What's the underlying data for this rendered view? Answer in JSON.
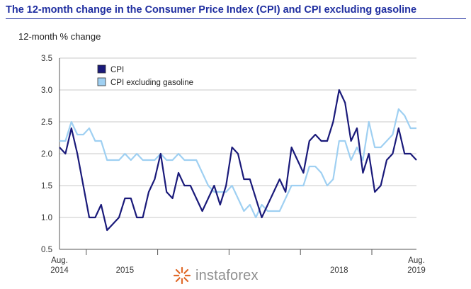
{
  "header": {
    "title": "The 12-month change in the Consumer Price Index (CPI) and CPI excluding gasoline",
    "ylabel": "12-month % change"
  },
  "watermark": {
    "text": "instaforex",
    "icon": "instaforex-logo-icon"
  },
  "colors": {
    "cpi": "#1a1a7a",
    "cpi_ex_gas": "#9fd0f2",
    "title": "#1f2ea0",
    "grid": "#c8c8c8"
  },
  "chart_data": {
    "type": "line",
    "title": "The 12-month change in the Consumer Price Index (CPI) and CPI excluding gasoline",
    "ylabel": "12-month % change",
    "xlabel": "",
    "ylim": [
      0.5,
      3.5
    ],
    "yticks": [
      "0.5",
      "1.0",
      "1.5",
      "2.0",
      "2.5",
      "3.0",
      "3.5"
    ],
    "ytick_values": [
      0.5,
      1.0,
      1.5,
      2.0,
      2.5,
      3.0,
      3.5
    ],
    "x_start": "2014-08",
    "x_end": "2019-08",
    "xtick_labels": [
      {
        "at": "2014-08",
        "lines": [
          "Aug.",
          "2014"
        ]
      },
      {
        "at": "2015-07",
        "lines": [
          "",
          "2015"
        ]
      },
      {
        "at": "2018-07",
        "lines": [
          "",
          "2018"
        ]
      },
      {
        "at": "2019-08",
        "lines": [
          "Aug.",
          "2019"
        ]
      }
    ],
    "year_separators": [
      "2015-01",
      "2016-01",
      "2017-01",
      "2018-01",
      "2019-01"
    ],
    "legend_position": "top-left",
    "series": [
      {
        "name": "CPI",
        "values": [
          2.1,
          2.0,
          2.4,
          2.0,
          1.5,
          1.0,
          1.0,
          1.2,
          0.8,
          0.9,
          1.0,
          1.3,
          1.3,
          1.0,
          1.0,
          1.4,
          1.6,
          2.0,
          1.4,
          1.3,
          1.7,
          1.5,
          1.5,
          1.3,
          1.1,
          1.3,
          1.5,
          1.2,
          1.5,
          2.1,
          2.0,
          1.6,
          1.6,
          1.3,
          1.0,
          1.2,
          1.4,
          1.6,
          1.4,
          2.1,
          1.9,
          1.7,
          2.2,
          2.3,
          2.2,
          2.2,
          2.5,
          3.0,
          2.8,
          2.2,
          2.4,
          1.7,
          2.0,
          1.4,
          1.5,
          1.9,
          2.0,
          2.4,
          2.0,
          2.0,
          1.9
        ]
      },
      {
        "name": "CPI excluding gasoline",
        "values": [
          2.2,
          2.2,
          2.5,
          2.3,
          2.3,
          2.4,
          2.2,
          2.2,
          1.9,
          1.9,
          1.9,
          2.0,
          1.9,
          2.0,
          1.9,
          1.9,
          1.9,
          2.0,
          1.9,
          1.9,
          2.0,
          1.9,
          1.9,
          1.9,
          1.7,
          1.5,
          1.4,
          1.4,
          1.4,
          1.5,
          1.3,
          1.1,
          1.2,
          1.0,
          1.2,
          1.1,
          1.1,
          1.1,
          1.3,
          1.5,
          1.5,
          1.5,
          1.8,
          1.8,
          1.7,
          1.5,
          1.6,
          2.2,
          2.2,
          1.9,
          2.1,
          1.9,
          2.5,
          2.1,
          2.1,
          2.2,
          2.3,
          2.7,
          2.6,
          2.4,
          2.4
        ]
      }
    ]
  }
}
